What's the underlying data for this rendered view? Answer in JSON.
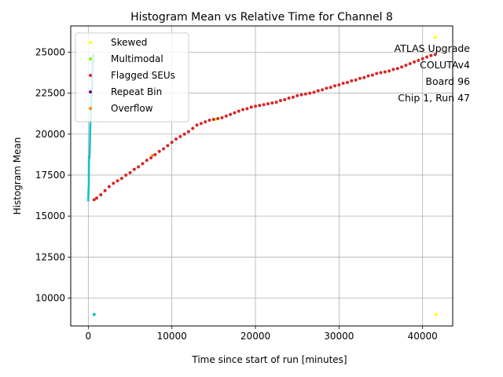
{
  "chart_data": {
    "type": "scatter",
    "title": "Histogram Mean vs Relative Time for Channel 8",
    "xlabel": "Time since start of run [minutes]",
    "ylabel": "Histogram Mean",
    "xlim": [
      -2100,
      43600
    ],
    "ylim": [
      8300,
      26600
    ],
    "xticks": [
      0,
      10000,
      20000,
      30000,
      40000
    ],
    "xtick_labels": [
      "0",
      "10000",
      "20000",
      "30000",
      "40000"
    ],
    "yticks": [
      10000,
      12500,
      15000,
      17500,
      20000,
      22500,
      25000
    ],
    "ytick_labels": [
      "10000",
      "12500",
      "15000",
      "17500",
      "20000",
      "22500",
      "25000"
    ],
    "grid": true,
    "legend_position": "top-left",
    "annotation": [
      "ATLAS Upgrade",
      "COLUTAv4",
      "Board 96",
      "Chip 1, Run 47"
    ],
    "series": [
      {
        "name": "",
        "color": "#17becf",
        "style": "line",
        "points": [
          [
            0,
            15900
          ],
          [
            30,
            16600
          ],
          [
            60,
            16800
          ],
          [
            80,
            18600
          ],
          [
            120,
            18500
          ],
          [
            160,
            18700
          ],
          [
            200,
            19500
          ],
          [
            240,
            20500
          ],
          [
            280,
            21000
          ],
          [
            320,
            21500
          ],
          [
            360,
            22000
          ],
          [
            400,
            22500
          ],
          [
            450,
            23200
          ],
          [
            500,
            23800
          ],
          [
            550,
            24300
          ],
          [
            600,
            24800
          ],
          [
            700,
            24900
          ]
        ]
      },
      {
        "name": "",
        "color": "#17becf",
        "style": "scatter",
        "points": [
          [
            700,
            9000
          ]
        ]
      },
      {
        "name": "Skewed",
        "color": "#ffff00",
        "style": "scatter",
        "points": [
          [
            41500,
            25900
          ],
          [
            41600,
            9000
          ],
          [
            15200,
            20900
          ]
        ]
      },
      {
        "name": "Multimodal",
        "color": "#7cfc00",
        "style": "scatter",
        "points": [
          [
            15000,
            20900
          ],
          [
            300,
            21000
          ]
        ]
      },
      {
        "name": "Flagged SEUs",
        "color": "#d62728",
        "style": "scatter",
        "points": [
          [
            700,
            16000
          ],
          [
            1000,
            16100
          ],
          [
            1500,
            16300
          ],
          [
            2000,
            16550
          ],
          [
            2500,
            16800
          ],
          [
            3000,
            17000
          ],
          [
            3500,
            17150
          ],
          [
            4000,
            17300
          ],
          [
            4500,
            17500
          ],
          [
            5000,
            17650
          ],
          [
            5500,
            17850
          ],
          [
            6000,
            18000
          ],
          [
            6500,
            18200
          ],
          [
            7000,
            18400
          ],
          [
            7500,
            18550
          ],
          [
            8000,
            18750
          ],
          [
            8500,
            18950
          ],
          [
            9000,
            19100
          ],
          [
            9500,
            19300
          ],
          [
            10000,
            19500
          ],
          [
            10500,
            19700
          ],
          [
            11000,
            19850
          ],
          [
            11500,
            20000
          ],
          [
            12000,
            20150
          ],
          [
            12500,
            20350
          ],
          [
            13000,
            20550
          ],
          [
            13500,
            20650
          ],
          [
            14000,
            20750
          ],
          [
            14500,
            20850
          ],
          [
            15000,
            20900
          ],
          [
            15500,
            20950
          ],
          [
            16000,
            21000
          ],
          [
            16500,
            21100
          ],
          [
            17000,
            21200
          ],
          [
            17500,
            21300
          ],
          [
            18000,
            21400
          ],
          [
            18500,
            21500
          ],
          [
            19000,
            21550
          ],
          [
            19500,
            21650
          ],
          [
            20000,
            21700
          ],
          [
            20500,
            21750
          ],
          [
            21000,
            21800
          ],
          [
            21500,
            21850
          ],
          [
            22000,
            21900
          ],
          [
            22500,
            21950
          ],
          [
            23000,
            22050
          ],
          [
            23500,
            22100
          ],
          [
            24000,
            22200
          ],
          [
            24500,
            22250
          ],
          [
            25000,
            22350
          ],
          [
            25500,
            22400
          ],
          [
            26000,
            22450
          ],
          [
            26500,
            22500
          ],
          [
            27000,
            22550
          ],
          [
            27500,
            22650
          ],
          [
            28000,
            22700
          ],
          [
            28500,
            22800
          ],
          [
            29000,
            22850
          ],
          [
            29500,
            22950
          ],
          [
            30000,
            23000
          ],
          [
            30500,
            23100
          ],
          [
            31000,
            23150
          ],
          [
            31500,
            23250
          ],
          [
            32000,
            23300
          ],
          [
            32500,
            23400
          ],
          [
            33000,
            23450
          ],
          [
            33500,
            23550
          ],
          [
            34000,
            23600
          ],
          [
            34500,
            23700
          ],
          [
            35000,
            23750
          ],
          [
            35500,
            23800
          ],
          [
            36000,
            23850
          ],
          [
            36500,
            23950
          ],
          [
            37000,
            24000
          ],
          [
            37500,
            24100
          ],
          [
            38000,
            24200
          ],
          [
            38500,
            24300
          ],
          [
            39000,
            24400
          ],
          [
            39500,
            24500
          ],
          [
            40000,
            24600
          ],
          [
            40500,
            24700
          ],
          [
            41000,
            24800
          ],
          [
            41500,
            24850
          ]
        ]
      },
      {
        "name": "Repeat Bin",
        "color": "#800080",
        "style": "scatter",
        "points": []
      },
      {
        "name": "Overflow",
        "color": "#ff8c00",
        "style": "scatter",
        "points": [
          [
            7700,
            18700
          ]
        ]
      }
    ]
  }
}
